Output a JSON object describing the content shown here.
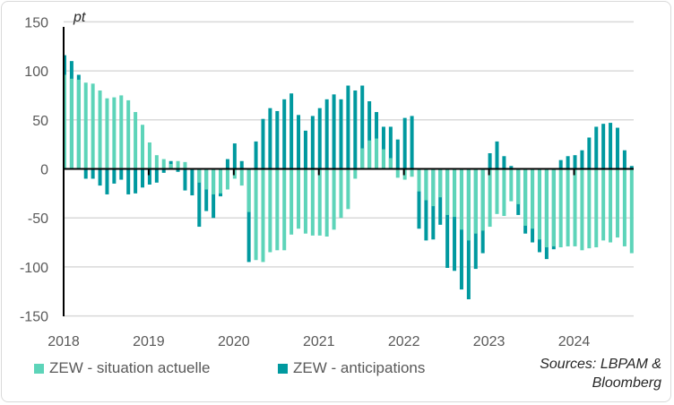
{
  "chart_data": {
    "type": "bar",
    "unit_label": "pt",
    "ylim": [
      -150,
      150
    ],
    "yticks": [
      150,
      100,
      50,
      0,
      -50,
      -100,
      -150
    ],
    "xticks": [
      "2018",
      "2019",
      "2020",
      "2021",
      "2022",
      "2023",
      "2024"
    ],
    "start": "2018-01",
    "frequency": "monthly",
    "grid": true,
    "legend_position": "bottom",
    "colors": {
      "situation": "#5dd4b9",
      "anticipations": "#00999f"
    },
    "series": [
      {
        "name": "ZEW - situation actuelle",
        "values": [
          96,
          92,
          91,
          88,
          87,
          80,
          72,
          73,
          75,
          70,
          58,
          45,
          27,
          14,
          10,
          5,
          8,
          7,
          -1,
          -14,
          -21,
          -26,
          -25,
          -21,
          -10,
          -17,
          -44,
          -93,
          -95,
          -85,
          -83,
          -83,
          -67,
          -61,
          -66,
          -68,
          -68,
          -69,
          -62,
          -50,
          -41,
          -10,
          21,
          29,
          31,
          20,
          11,
          -9,
          -11,
          -8,
          -23,
          -32,
          -38,
          -29,
          -47,
          -49,
          -62,
          -73,
          -66,
          -63,
          -59,
          -46,
          -48,
          -33,
          -36,
          -58,
          -61,
          -72,
          -80,
          -79,
          -80,
          -79,
          -79,
          -83,
          -81,
          -80,
          -73,
          -75,
          -70,
          -79,
          -86
        ]
      },
      {
        "name": "ZEW - anticipations",
        "values": [
          116,
          110,
          96,
          -10,
          -10,
          -17,
          -26,
          -15,
          -11,
          -26,
          -25,
          -19,
          -16,
          -14,
          -4,
          8,
          -3,
          -22,
          -27,
          -59,
          -43,
          -50,
          -28,
          10,
          26,
          8,
          -95,
          28,
          51,
          62,
          59,
          71,
          77,
          55,
          39,
          54,
          62,
          71,
          76,
          71,
          85,
          80,
          85,
          69,
          58,
          43,
          43,
          30,
          52,
          54,
          -61,
          -73,
          -72,
          -57,
          -101,
          -104,
          -123,
          -133,
          -102,
          -86,
          16,
          28,
          13,
          3,
          -47,
          -66,
          -75,
          -85,
          -92,
          -82,
          9,
          13,
          14,
          19,
          32,
          43,
          46,
          47,
          42,
          19,
          3
        ]
      }
    ],
    "source": [
      "Sources: LBPAM &",
      "Bloomberg"
    ]
  }
}
